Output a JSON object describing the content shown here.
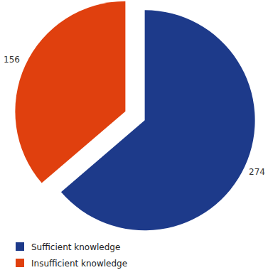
{
  "chart_data": {
    "type": "pie",
    "categories": [
      "Sufficient knowledge",
      "Insufficient knowledge"
    ],
    "values": [
      274,
      156
    ],
    "colors": [
      "#1d3a8a",
      "#e0400e"
    ],
    "legend": "bottom-left",
    "data_labels": true
  }
}
